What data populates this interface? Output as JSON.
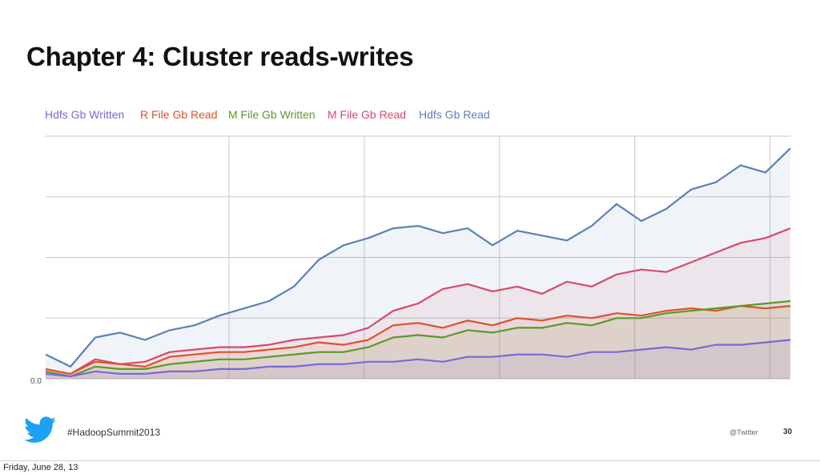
{
  "slide": {
    "title": "Chapter 4: Cluster reads-writes",
    "hashtag": "#HadoopSummit2013",
    "handle": "@Twitter",
    "page_number": "30",
    "twitter_icon": "twitter-bird-icon",
    "twitter_color": "#1da1f2"
  },
  "footer": {
    "date": "Friday, June 28, 13"
  },
  "chart_data": {
    "type": "area",
    "title": "",
    "xlabel": "",
    "ylabel": "",
    "y_tick_labels": [
      "0.0"
    ],
    "ylim": [
      0,
      100
    ],
    "x": [
      0,
      10,
      20,
      30,
      40,
      50,
      60,
      70,
      80,
      90,
      100,
      110,
      120,
      130,
      140,
      150,
      160,
      170,
      180,
      190,
      200,
      210,
      220,
      230,
      240,
      250,
      260,
      270,
      280,
      290,
      300
    ],
    "grid": true,
    "legend_position": "top-left",
    "series": [
      {
        "name": "Hdfs Gb Written",
        "color": "#7a68d8",
        "values": [
          2,
          1,
          3,
          2,
          2,
          3,
          3,
          4,
          4,
          5,
          5,
          6,
          6,
          7,
          7,
          8,
          7,
          9,
          9,
          10,
          10,
          9,
          11,
          11,
          12,
          13,
          12,
          14,
          14,
          15,
          16
        ]
      },
      {
        "name": "R File Gb Read",
        "color": "#e0502a",
        "values": [
          4,
          2,
          7,
          6,
          5,
          9,
          10,
          11,
          11,
          12,
          13,
          15,
          14,
          16,
          22,
          23,
          21,
          24,
          22,
          25,
          24,
          26,
          25,
          27,
          26,
          28,
          29,
          28,
          30,
          29,
          30
        ]
      },
      {
        "name": "M File Gb Written",
        "color": "#5a9a28",
        "values": [
          3,
          1,
          5,
          4,
          4,
          6,
          7,
          8,
          8,
          9,
          10,
          11,
          11,
          13,
          17,
          18,
          17,
          20,
          19,
          21,
          21,
          23,
          22,
          25,
          25,
          27,
          28,
          29,
          30,
          31,
          32
        ]
      },
      {
        "name": "M File Gb Read",
        "color": "#d84a6a",
        "values": [
          4,
          2,
          8,
          6,
          7,
          11,
          12,
          13,
          13,
          14,
          16,
          17,
          18,
          21,
          28,
          31,
          37,
          39,
          36,
          38,
          35,
          40,
          38,
          43,
          45,
          44,
          48,
          52,
          56,
          58,
          62
        ]
      },
      {
        "name": "Hdfs Gb Read",
        "color": "#5b80b8",
        "values": [
          10,
          5,
          17,
          19,
          16,
          20,
          22,
          26,
          29,
          32,
          38,
          49,
          55,
          58,
          62,
          63,
          60,
          62,
          55,
          61,
          59,
          57,
          63,
          72,
          65,
          70,
          78,
          81,
          88,
          85,
          95
        ]
      }
    ]
  }
}
